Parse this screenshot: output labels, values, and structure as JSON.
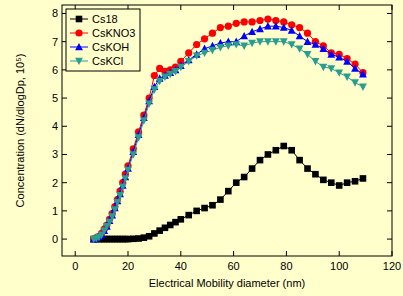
{
  "chart_data": {
    "type": "line",
    "x_label": "Electrical Mobility diameter (nm)",
    "y_label": "Concentration (dN/dlogDp, 10⁵)",
    "x": [
      7,
      8,
      9,
      10,
      11,
      12,
      13,
      14,
      15,
      16,
      17,
      18,
      19,
      20,
      22,
      24,
      26,
      28,
      30,
      32,
      34,
      36,
      38,
      40,
      43,
      46,
      49,
      52,
      55,
      58,
      61,
      64,
      67,
      70,
      73,
      76,
      79,
      82,
      85,
      88,
      91,
      94,
      97,
      100,
      103,
      106,
      109
    ],
    "series": [
      {
        "name": "Cs18",
        "color": "#000000",
        "marker": "square",
        "line_style": "solid",
        "values": [
          0,
          0,
          0,
          0,
          0,
          0,
          0,
          0,
          0,
          0,
          0,
          0,
          0,
          0,
          0.01,
          0.02,
          0.05,
          0.1,
          0.2,
          0.3,
          0.4,
          0.5,
          0.6,
          0.7,
          0.85,
          1.0,
          1.1,
          1.2,
          1.4,
          1.7,
          2.0,
          2.2,
          2.5,
          2.8,
          3.0,
          3.15,
          3.3,
          3.15,
          2.8,
          2.5,
          2.3,
          2.1,
          2.0,
          1.9,
          2.0,
          2.05,
          2.15
        ]
      },
      {
        "name": "CsKNO3",
        "color": "#ff0000",
        "marker": "circle",
        "line_style": "solid",
        "values": [
          0,
          0.05,
          0.1,
          0.2,
          0.35,
          0.5,
          0.7,
          0.9,
          1.15,
          1.4,
          1.7,
          2.0,
          2.3,
          2.6,
          3.2,
          3.8,
          4.4,
          5.0,
          5.8,
          6.05,
          5.95,
          6.0,
          6.1,
          6.3,
          6.6,
          6.9,
          7.1,
          7.3,
          7.5,
          7.55,
          7.65,
          7.7,
          7.7,
          7.75,
          7.8,
          7.75,
          7.7,
          7.6,
          7.5,
          7.3,
          7.0,
          6.85,
          6.6,
          6.55,
          6.4,
          6.2,
          5.9
        ]
      },
      {
        "name": "CsKOH",
        "color": "#0000ff",
        "marker": "triangle-up",
        "line_style": "solid",
        "values": [
          0,
          0.03,
          0.08,
          0.15,
          0.3,
          0.45,
          0.65,
          0.85,
          1.1,
          1.35,
          1.6,
          1.9,
          2.2,
          2.5,
          3.1,
          3.7,
          4.3,
          4.9,
          5.4,
          5.7,
          5.8,
          5.9,
          6.0,
          6.15,
          6.35,
          6.55,
          6.75,
          6.85,
          6.95,
          7.0,
          7.0,
          7.2,
          7.35,
          7.45,
          7.55,
          7.55,
          7.5,
          7.4,
          7.2,
          7.0,
          6.9,
          6.75,
          6.55,
          6.45,
          6.3,
          6.05,
          5.85
        ]
      },
      {
        "name": "CsKCl",
        "color": "#2a9d8f",
        "marker": "triangle-down",
        "line_style": "solid",
        "values": [
          0,
          0.02,
          0.07,
          0.15,
          0.3,
          0.45,
          0.6,
          0.8,
          1.05,
          1.3,
          1.55,
          1.85,
          2.15,
          2.45,
          3.0,
          3.6,
          4.2,
          4.8,
          5.3,
          5.6,
          5.75,
          5.85,
          5.95,
          6.1,
          6.3,
          6.5,
          6.6,
          6.7,
          6.8,
          6.85,
          6.9,
          6.85,
          6.95,
          7.0,
          7.0,
          7.0,
          7.0,
          6.9,
          6.75,
          6.55,
          6.3,
          6.1,
          6.05,
          5.9,
          5.75,
          5.55,
          5.4
        ]
      }
    ],
    "xlim": [
      -5,
      120
    ],
    "xticks": [
      0,
      20,
      40,
      60,
      80,
      100,
      120
    ],
    "ylim": [
      -0.6,
      8.3
    ],
    "yticks": [
      0,
      1,
      2,
      3,
      4,
      5,
      6,
      7,
      8
    ],
    "grid": false,
    "legend": "top-left"
  }
}
